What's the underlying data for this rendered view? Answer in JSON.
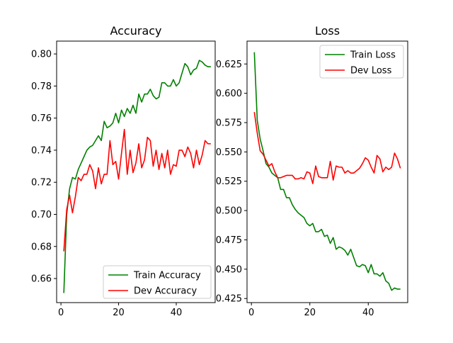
{
  "chart_data": [
    {
      "type": "line",
      "title": "Accuracy",
      "xlabel": "",
      "ylabel": "",
      "xlim": [
        -1.5,
        53.5
      ],
      "ylim": [
        0.645,
        0.808
      ],
      "xticks": [
        0,
        20,
        40
      ],
      "xtick_labels": [
        "0",
        "20",
        "40"
      ],
      "yticks": [
        0.66,
        0.68,
        0.7,
        0.72,
        0.74,
        0.76,
        0.78,
        0.8
      ],
      "ytick_labels": [
        "0.66",
        "0.68",
        "0.70",
        "0.72",
        "0.74",
        "0.76",
        "0.78",
        "0.80"
      ],
      "legend_position": "lower-right",
      "x": [
        1,
        2,
        3,
        4,
        5,
        6,
        7,
        8,
        9,
        10,
        11,
        12,
        13,
        14,
        15,
        16,
        17,
        18,
        19,
        20,
        21,
        22,
        23,
        24,
        25,
        26,
        27,
        28,
        29,
        30,
        31,
        32,
        33,
        34,
        35,
        36,
        37,
        38,
        39,
        40,
        41,
        42,
        43,
        44,
        45,
        46,
        47,
        48,
        49,
        50,
        51,
        52
      ],
      "series": [
        {
          "name": "Train Accuracy",
          "color": "#008000",
          "values": [
            0.651,
            0.7,
            0.716,
            0.723,
            0.722,
            0.728,
            0.732,
            0.736,
            0.74,
            0.742,
            0.743,
            0.746,
            0.749,
            0.746,
            0.758,
            0.754,
            0.755,
            0.757,
            0.763,
            0.757,
            0.765,
            0.761,
            0.766,
            0.763,
            0.768,
            0.763,
            0.775,
            0.77,
            0.775,
            0.775,
            0.778,
            0.774,
            0.772,
            0.773,
            0.782,
            0.782,
            0.78,
            0.78,
            0.784,
            0.78,
            0.782,
            0.788,
            0.794,
            0.792,
            0.787,
            0.79,
            0.791,
            0.796,
            0.795,
            0.793,
            0.792,
            0.792
          ]
        },
        {
          "name": "Dev Accuracy",
          "color": "#ff0000",
          "values": [
            0.677,
            0.703,
            0.712,
            0.701,
            0.711,
            0.723,
            0.721,
            0.725,
            0.725,
            0.731,
            0.727,
            0.716,
            0.729,
            0.719,
            0.725,
            0.725,
            0.746,
            0.731,
            0.733,
            0.722,
            0.738,
            0.753,
            0.725,
            0.74,
            0.726,
            0.732,
            0.744,
            0.729,
            0.734,
            0.748,
            0.746,
            0.73,
            0.74,
            0.728,
            0.738,
            0.729,
            0.74,
            0.725,
            0.731,
            0.73,
            0.74,
            0.74,
            0.736,
            0.742,
            0.738,
            0.729,
            0.74,
            0.731,
            0.737,
            0.746,
            0.744,
            0.744
          ]
        }
      ]
    },
    {
      "type": "line",
      "title": "Loss",
      "xlabel": "",
      "ylabel": "",
      "xlim": [
        -1.5,
        53.5
      ],
      "ylim": [
        0.4215,
        0.6445
      ],
      "xticks": [
        0,
        20,
        40
      ],
      "xtick_labels": [
        "0",
        "20",
        "40"
      ],
      "yticks": [
        0.425,
        0.45,
        0.475,
        0.5,
        0.525,
        0.55,
        0.575,
        0.6,
        0.625
      ],
      "ytick_labels": [
        "0.425",
        "0.450",
        "0.475",
        "0.500",
        "0.525",
        "0.550",
        "0.575",
        "0.600",
        "0.625"
      ],
      "legend_position": "upper-right",
      "x": [
        1,
        2,
        3,
        4,
        5,
        6,
        7,
        8,
        9,
        10,
        11,
        12,
        13,
        14,
        15,
        16,
        17,
        18,
        19,
        20,
        21,
        22,
        23,
        24,
        25,
        26,
        27,
        28,
        29,
        30,
        31,
        32,
        33,
        34,
        35,
        36,
        37,
        38,
        39,
        40,
        41,
        42,
        43,
        44,
        45,
        46,
        47,
        48,
        49,
        50,
        51
      ],
      "series": [
        {
          "name": "Train Loss",
          "color": "#008000",
          "values": [
            0.635,
            0.577,
            0.561,
            0.551,
            0.54,
            0.537,
            0.532,
            0.53,
            0.528,
            0.518,
            0.518,
            0.511,
            0.511,
            0.505,
            0.501,
            0.498,
            0.496,
            0.494,
            0.489,
            0.487,
            0.489,
            0.482,
            0.482,
            0.484,
            0.478,
            0.479,
            0.472,
            0.477,
            0.467,
            0.469,
            0.468,
            0.466,
            0.462,
            0.467,
            0.46,
            0.453,
            0.452,
            0.454,
            0.453,
            0.447,
            0.454,
            0.446,
            0.446,
            0.444,
            0.447,
            0.44,
            0.438,
            0.432,
            0.434,
            0.433,
            0.433
          ]
        },
        {
          "name": "Dev Loss",
          "color": "#ff0000",
          "values": [
            0.584,
            0.566,
            0.551,
            0.548,
            0.543,
            0.538,
            0.54,
            0.533,
            0.528,
            0.528,
            0.529,
            0.53,
            0.53,
            0.53,
            0.527,
            0.527,
            0.528,
            0.527,
            0.533,
            0.532,
            0.523,
            0.538,
            0.529,
            0.528,
            0.528,
            0.528,
            0.542,
            0.526,
            0.538,
            0.537,
            0.537,
            0.532,
            0.534,
            0.532,
            0.532,
            0.534,
            0.536,
            0.54,
            0.545,
            0.543,
            0.537,
            0.532,
            0.547,
            0.544,
            0.533,
            0.537,
            0.535,
            0.537,
            0.549,
            0.544,
            0.536
          ]
        }
      ]
    }
  ]
}
